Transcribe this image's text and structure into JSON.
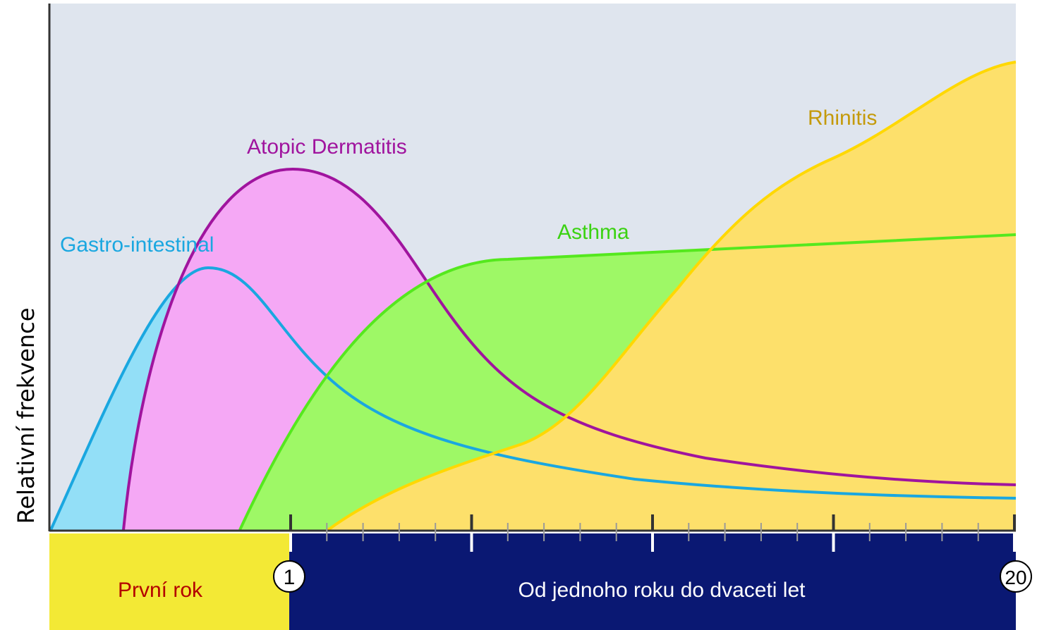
{
  "y_axis_label": "Relativní frekvence",
  "curves": [
    {
      "label": "Gastro-intestinal"
    },
    {
      "label": "Atopic Dermatitis"
    },
    {
      "label": "Asthma"
    },
    {
      "label": "Rhinitis"
    }
  ],
  "bands": [
    {
      "label": "První rok"
    },
    {
      "label": "Od jednoho roku do dvaceti let"
    }
  ],
  "markers": [
    "1",
    "20"
  ]
}
